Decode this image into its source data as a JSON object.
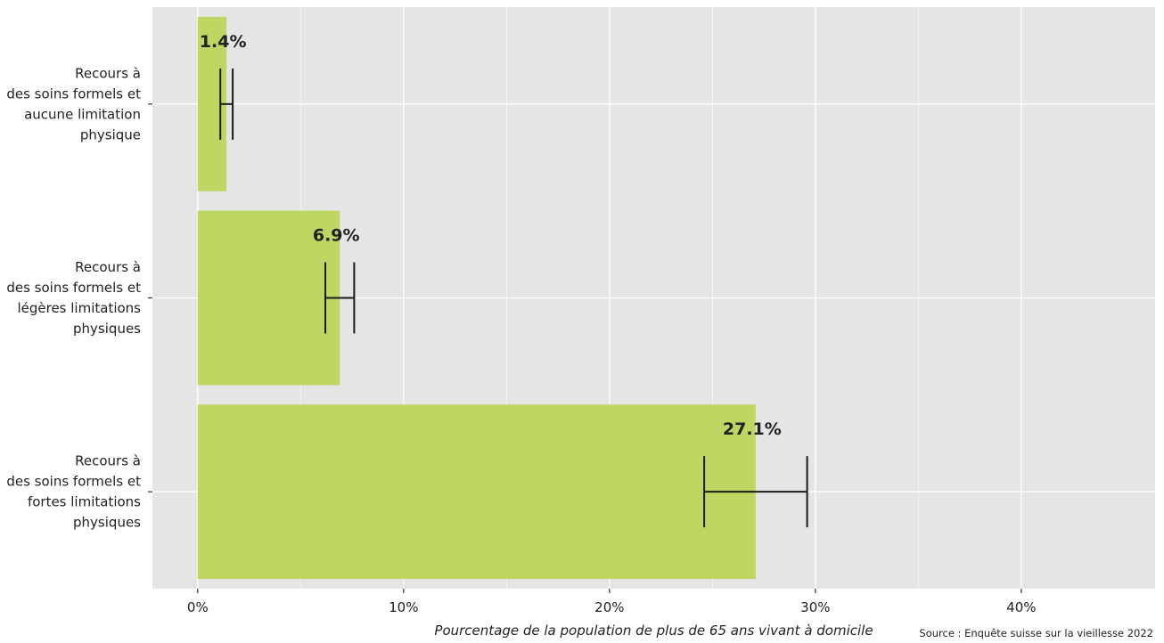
{
  "chart_data": {
    "type": "bar",
    "orientation": "horizontal",
    "categories": [
      [
        "Recours à",
        "des soins formels et",
        "aucune limitation",
        "physique"
      ],
      [
        "Recours à",
        "des soins formels et",
        "légères limitations",
        "physiques"
      ],
      [
        "Recours à",
        "des soins formels et",
        "fortes limitations",
        "physiques"
      ]
    ],
    "values": [
      1.4,
      6.9,
      27.1
    ],
    "data_labels": [
      "1.4%",
      "6.9%",
      "27.1%"
    ],
    "error_bars": [
      {
        "low": 1.1,
        "high": 1.7
      },
      {
        "low": 6.2,
        "high": 7.6
      },
      {
        "low": 24.6,
        "high": 29.6
      }
    ],
    "xlim": [
      -2.2,
      46.5
    ],
    "x_ticks": [
      0,
      10,
      20,
      30,
      40
    ],
    "x_tick_labels": [
      "0%",
      "10%",
      "20%",
      "30%",
      "40%"
    ],
    "xlabel": "Pourcentage de la population de plus de 65 ans vivant à domicile",
    "source": "Source : Enquête suisse sur la vieillesse 2022",
    "grid": true,
    "legend": "none",
    "colors": {
      "bar": "#bdd762",
      "panel": "#e5e5e5",
      "grid": "#ffffff",
      "text": "#222222",
      "error_bar": "#1a1a1a"
    }
  }
}
